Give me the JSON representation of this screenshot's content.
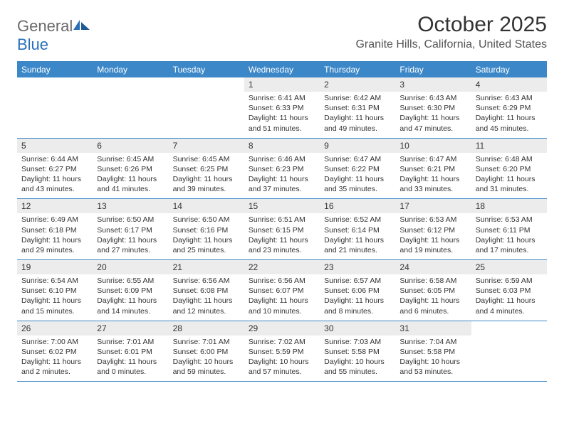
{
  "brand": {
    "part1": "General",
    "part2": "Blue"
  },
  "header": {
    "month_title": "October 2025",
    "location": "Granite Hills, California, United States"
  },
  "colors": {
    "header_bg": "#3b87c8",
    "row_divider": "#3b87c8",
    "daynum_bg": "#ececec",
    "text": "#333333",
    "logo_gray": "#6a6a6a",
    "logo_blue": "#2a70b8"
  },
  "weekdays": [
    "Sunday",
    "Monday",
    "Tuesday",
    "Wednesday",
    "Thursday",
    "Friday",
    "Saturday"
  ],
  "weeks": [
    {
      "days": [
        {
          "n": "",
          "lines": []
        },
        {
          "n": "",
          "lines": []
        },
        {
          "n": "",
          "lines": []
        },
        {
          "n": "1",
          "lines": [
            "Sunrise: 6:41 AM",
            "Sunset: 6:33 PM",
            "Daylight: 11 hours",
            "and 51 minutes."
          ]
        },
        {
          "n": "2",
          "lines": [
            "Sunrise: 6:42 AM",
            "Sunset: 6:31 PM",
            "Daylight: 11 hours",
            "and 49 minutes."
          ]
        },
        {
          "n": "3",
          "lines": [
            "Sunrise: 6:43 AM",
            "Sunset: 6:30 PM",
            "Daylight: 11 hours",
            "and 47 minutes."
          ]
        },
        {
          "n": "4",
          "lines": [
            "Sunrise: 6:43 AM",
            "Sunset: 6:29 PM",
            "Daylight: 11 hours",
            "and 45 minutes."
          ]
        }
      ]
    },
    {
      "days": [
        {
          "n": "5",
          "lines": [
            "Sunrise: 6:44 AM",
            "Sunset: 6:27 PM",
            "Daylight: 11 hours",
            "and 43 minutes."
          ]
        },
        {
          "n": "6",
          "lines": [
            "Sunrise: 6:45 AM",
            "Sunset: 6:26 PM",
            "Daylight: 11 hours",
            "and 41 minutes."
          ]
        },
        {
          "n": "7",
          "lines": [
            "Sunrise: 6:45 AM",
            "Sunset: 6:25 PM",
            "Daylight: 11 hours",
            "and 39 minutes."
          ]
        },
        {
          "n": "8",
          "lines": [
            "Sunrise: 6:46 AM",
            "Sunset: 6:23 PM",
            "Daylight: 11 hours",
            "and 37 minutes."
          ]
        },
        {
          "n": "9",
          "lines": [
            "Sunrise: 6:47 AM",
            "Sunset: 6:22 PM",
            "Daylight: 11 hours",
            "and 35 minutes."
          ]
        },
        {
          "n": "10",
          "lines": [
            "Sunrise: 6:47 AM",
            "Sunset: 6:21 PM",
            "Daylight: 11 hours",
            "and 33 minutes."
          ]
        },
        {
          "n": "11",
          "lines": [
            "Sunrise: 6:48 AM",
            "Sunset: 6:20 PM",
            "Daylight: 11 hours",
            "and 31 minutes."
          ]
        }
      ]
    },
    {
      "days": [
        {
          "n": "12",
          "lines": [
            "Sunrise: 6:49 AM",
            "Sunset: 6:18 PM",
            "Daylight: 11 hours",
            "and 29 minutes."
          ]
        },
        {
          "n": "13",
          "lines": [
            "Sunrise: 6:50 AM",
            "Sunset: 6:17 PM",
            "Daylight: 11 hours",
            "and 27 minutes."
          ]
        },
        {
          "n": "14",
          "lines": [
            "Sunrise: 6:50 AM",
            "Sunset: 6:16 PM",
            "Daylight: 11 hours",
            "and 25 minutes."
          ]
        },
        {
          "n": "15",
          "lines": [
            "Sunrise: 6:51 AM",
            "Sunset: 6:15 PM",
            "Daylight: 11 hours",
            "and 23 minutes."
          ]
        },
        {
          "n": "16",
          "lines": [
            "Sunrise: 6:52 AM",
            "Sunset: 6:14 PM",
            "Daylight: 11 hours",
            "and 21 minutes."
          ]
        },
        {
          "n": "17",
          "lines": [
            "Sunrise: 6:53 AM",
            "Sunset: 6:12 PM",
            "Daylight: 11 hours",
            "and 19 minutes."
          ]
        },
        {
          "n": "18",
          "lines": [
            "Sunrise: 6:53 AM",
            "Sunset: 6:11 PM",
            "Daylight: 11 hours",
            "and 17 minutes."
          ]
        }
      ]
    },
    {
      "days": [
        {
          "n": "19",
          "lines": [
            "Sunrise: 6:54 AM",
            "Sunset: 6:10 PM",
            "Daylight: 11 hours",
            "and 15 minutes."
          ]
        },
        {
          "n": "20",
          "lines": [
            "Sunrise: 6:55 AM",
            "Sunset: 6:09 PM",
            "Daylight: 11 hours",
            "and 14 minutes."
          ]
        },
        {
          "n": "21",
          "lines": [
            "Sunrise: 6:56 AM",
            "Sunset: 6:08 PM",
            "Daylight: 11 hours",
            "and 12 minutes."
          ]
        },
        {
          "n": "22",
          "lines": [
            "Sunrise: 6:56 AM",
            "Sunset: 6:07 PM",
            "Daylight: 11 hours",
            "and 10 minutes."
          ]
        },
        {
          "n": "23",
          "lines": [
            "Sunrise: 6:57 AM",
            "Sunset: 6:06 PM",
            "Daylight: 11 hours",
            "and 8 minutes."
          ]
        },
        {
          "n": "24",
          "lines": [
            "Sunrise: 6:58 AM",
            "Sunset: 6:05 PM",
            "Daylight: 11 hours",
            "and 6 minutes."
          ]
        },
        {
          "n": "25",
          "lines": [
            "Sunrise: 6:59 AM",
            "Sunset: 6:03 PM",
            "Daylight: 11 hours",
            "and 4 minutes."
          ]
        }
      ]
    },
    {
      "days": [
        {
          "n": "26",
          "lines": [
            "Sunrise: 7:00 AM",
            "Sunset: 6:02 PM",
            "Daylight: 11 hours",
            "and 2 minutes."
          ]
        },
        {
          "n": "27",
          "lines": [
            "Sunrise: 7:01 AM",
            "Sunset: 6:01 PM",
            "Daylight: 11 hours",
            "and 0 minutes."
          ]
        },
        {
          "n": "28",
          "lines": [
            "Sunrise: 7:01 AM",
            "Sunset: 6:00 PM",
            "Daylight: 10 hours",
            "and 59 minutes."
          ]
        },
        {
          "n": "29",
          "lines": [
            "Sunrise: 7:02 AM",
            "Sunset: 5:59 PM",
            "Daylight: 10 hours",
            "and 57 minutes."
          ]
        },
        {
          "n": "30",
          "lines": [
            "Sunrise: 7:03 AM",
            "Sunset: 5:58 PM",
            "Daylight: 10 hours",
            "and 55 minutes."
          ]
        },
        {
          "n": "31",
          "lines": [
            "Sunrise: 7:04 AM",
            "Sunset: 5:58 PM",
            "Daylight: 10 hours",
            "and 53 minutes."
          ]
        },
        {
          "n": "",
          "lines": []
        }
      ]
    }
  ]
}
